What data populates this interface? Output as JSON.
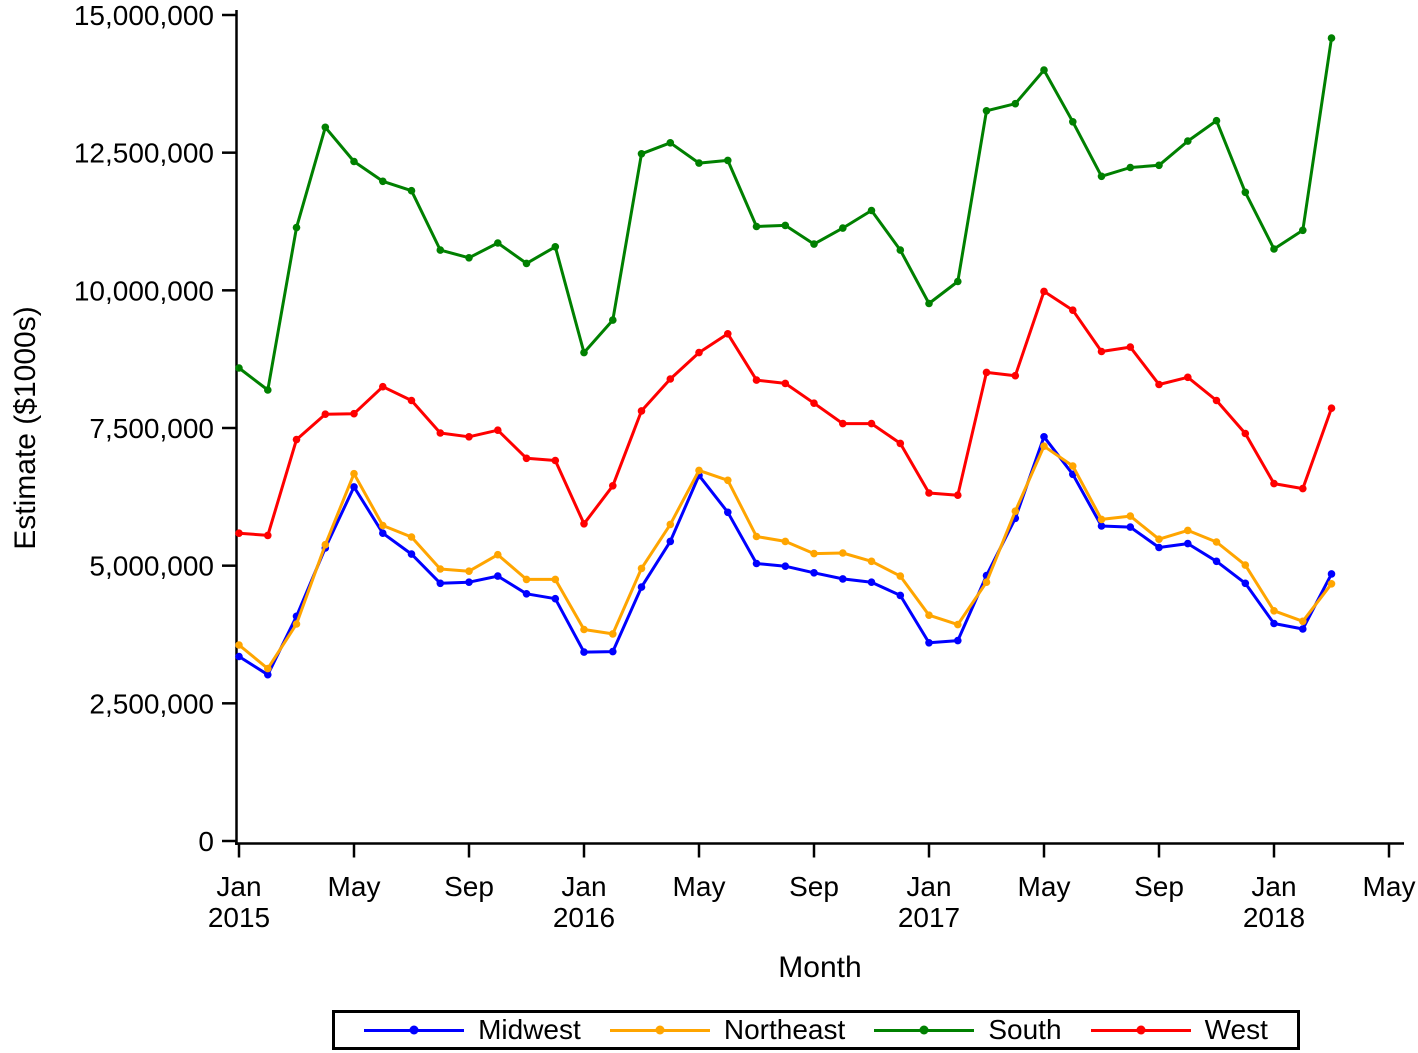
{
  "chart_data": {
    "type": "line",
    "title": "",
    "xlabel": "Month",
    "ylabel": "Estimate ($1000s)",
    "ylim": [
      0,
      15000000
    ],
    "grid": false,
    "legend_position": "bottom",
    "yticks": [
      {
        "value": 0,
        "label": "0"
      },
      {
        "value": 2500000,
        "label": "2,500,000"
      },
      {
        "value": 5000000,
        "label": "5,000,000"
      },
      {
        "value": 7500000,
        "label": "7,500,000"
      },
      {
        "value": 10000000,
        "label": "10,000,000"
      },
      {
        "value": 12500000,
        "label": "12,500,000"
      },
      {
        "value": 15000000,
        "label": "15,000,000"
      }
    ],
    "xticks": [
      {
        "index": 0,
        "month": "Jan",
        "year": "2015"
      },
      {
        "index": 4,
        "month": "May",
        "year": ""
      },
      {
        "index": 8,
        "month": "Sep",
        "year": ""
      },
      {
        "index": 12,
        "month": "Jan",
        "year": "2016"
      },
      {
        "index": 16,
        "month": "May",
        "year": ""
      },
      {
        "index": 20,
        "month": "Sep",
        "year": ""
      },
      {
        "index": 24,
        "month": "Jan",
        "year": "2017"
      },
      {
        "index": 28,
        "month": "May",
        "year": ""
      },
      {
        "index": 32,
        "month": "Sep",
        "year": ""
      },
      {
        "index": 36,
        "month": "Jan",
        "year": "2018"
      },
      {
        "index": 40,
        "month": "May",
        "year": ""
      }
    ],
    "x": [
      "Jan 2015",
      "Feb 2015",
      "Mar 2015",
      "Apr 2015",
      "May 2015",
      "Jun 2015",
      "Jul 2015",
      "Aug 2015",
      "Sep 2015",
      "Oct 2015",
      "Nov 2015",
      "Dec 2015",
      "Jan 2016",
      "Feb 2016",
      "Mar 2016",
      "Apr 2016",
      "May 2016",
      "Jun 2016",
      "Jul 2016",
      "Aug 2016",
      "Sep 2016",
      "Oct 2016",
      "Nov 2016",
      "Dec 2016",
      "Jan 2017",
      "Feb 2017",
      "Mar 2017",
      "Apr 2017",
      "May 2017",
      "Jun 2017",
      "Jul 2017",
      "Aug 2017",
      "Sep 2017",
      "Oct 2017",
      "Nov 2017",
      "Dec 2017",
      "Jan 2018",
      "Feb 2018",
      "Mar 2018"
    ],
    "series": [
      {
        "name": "Midwest",
        "color": "#0000ff",
        "values": [
          3350000,
          3020000,
          4080000,
          5320000,
          6430000,
          5590000,
          5210000,
          4680000,
          4700000,
          4810000,
          4490000,
          4400000,
          3430000,
          3440000,
          4610000,
          5440000,
          6640000,
          5970000,
          5040000,
          4990000,
          4870000,
          4760000,
          4700000,
          4460000,
          3600000,
          3640000,
          4820000,
          5860000,
          7340000,
          6660000,
          5720000,
          5700000,
          5330000,
          5400000,
          5080000,
          4680000,
          3950000,
          3850000,
          4850000
        ]
      },
      {
        "name": "Northeast",
        "color": "#ffa500",
        "values": [
          3560000,
          3130000,
          3940000,
          5380000,
          6670000,
          5730000,
          5520000,
          4940000,
          4900000,
          5200000,
          4750000,
          4750000,
          3840000,
          3760000,
          4950000,
          5750000,
          6730000,
          6550000,
          5530000,
          5440000,
          5220000,
          5230000,
          5080000,
          4810000,
          4100000,
          3930000,
          4700000,
          5990000,
          7170000,
          6810000,
          5840000,
          5900000,
          5480000,
          5640000,
          5430000,
          5010000,
          4180000,
          3990000,
          4670000
        ]
      },
      {
        "name": "South",
        "color": "#008000",
        "values": [
          8590000,
          8190000,
          11140000,
          12960000,
          12340000,
          11980000,
          11810000,
          10730000,
          10590000,
          10860000,
          10490000,
          10790000,
          8870000,
          9460000,
          12480000,
          12680000,
          12310000,
          12360000,
          11160000,
          11180000,
          10840000,
          11130000,
          11450000,
          10730000,
          9760000,
          10160000,
          13260000,
          13390000,
          14000000,
          13060000,
          12070000,
          12230000,
          12270000,
          12710000,
          13080000,
          11780000,
          10750000,
          11090000,
          14580000
        ]
      },
      {
        "name": "West",
        "color": "#ff0000",
        "values": [
          5590000,
          5550000,
          7290000,
          7750000,
          7760000,
          8250000,
          8000000,
          7410000,
          7340000,
          7460000,
          6950000,
          6910000,
          5760000,
          6450000,
          7810000,
          8390000,
          8870000,
          9210000,
          8370000,
          8310000,
          7950000,
          7580000,
          7580000,
          7220000,
          6320000,
          6280000,
          8510000,
          8450000,
          9980000,
          9640000,
          8890000,
          8970000,
          8290000,
          8420000,
          8000000,
          7400000,
          6490000,
          6400000,
          7860000
        ]
      }
    ]
  }
}
